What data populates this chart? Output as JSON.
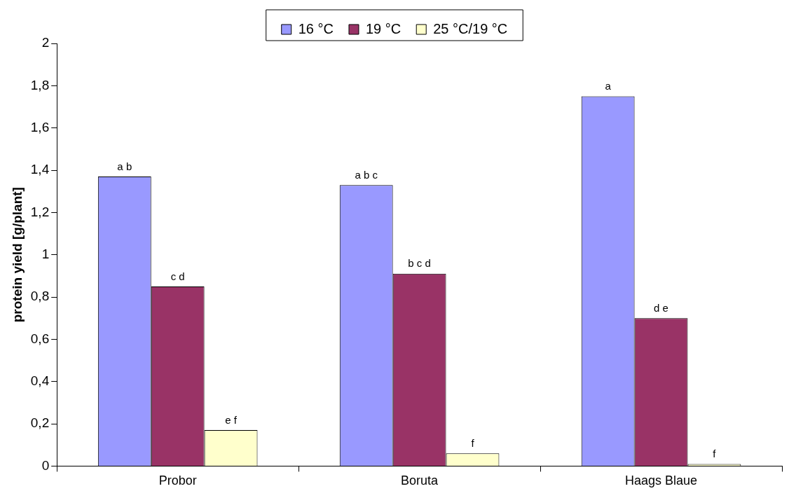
{
  "chart_data": {
    "type": "bar",
    "ylabel": "protein yield [g/plant]",
    "categories": [
      "Probor",
      "Boruta",
      "Haags Blaue"
    ],
    "series": [
      {
        "name": "16 °C",
        "color": "#9999ff",
        "values": [
          1.37,
          1.33,
          1.75
        ],
        "value_labels": [
          "a b",
          "a b c",
          "a"
        ]
      },
      {
        "name": "19 °C",
        "color": "#993366",
        "values": [
          0.85,
          0.91,
          0.7
        ],
        "value_labels": [
          "c d",
          "b c d",
          "d e"
        ]
      },
      {
        "name": "25 °C/19 °C",
        "color": "#ffffcc",
        "values": [
          0.17,
          0.06,
          0.01
        ],
        "value_labels": [
          "e f",
          "f",
          "f"
        ]
      }
    ],
    "ylim": [
      0,
      2
    ],
    "yticks": [
      {
        "value": 0,
        "label": "0"
      },
      {
        "value": 0.2,
        "label": "0,2"
      },
      {
        "value": 0.4,
        "label": "0,4"
      },
      {
        "value": 0.6,
        "label": "0,6"
      },
      {
        "value": 0.8,
        "label": "0,8"
      },
      {
        "value": 1,
        "label": "1"
      },
      {
        "value": 1.2,
        "label": "1,2"
      },
      {
        "value": 1.4,
        "label": "1,4"
      },
      {
        "value": 1.6,
        "label": "1,6"
      },
      {
        "value": 1.8,
        "label": "1,8"
      },
      {
        "value": 2,
        "label": "2"
      }
    ],
    "grid": false,
    "legend": "top"
  }
}
